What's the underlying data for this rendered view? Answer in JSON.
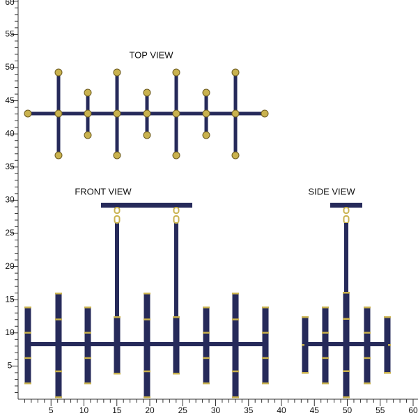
{
  "views": {
    "top": "TOP VIEW",
    "front": "FRONT VIEW",
    "side": "SIDE VIEW"
  },
  "x_ruler": {
    "ticks": [
      5,
      10,
      15,
      20,
      25,
      30,
      35,
      40,
      45,
      50,
      55,
      60
    ]
  },
  "y_ruler": {
    "ticks": [
      5,
      10,
      15,
      20,
      25,
      30,
      35,
      40,
      45,
      50,
      55,
      60
    ]
  }
}
